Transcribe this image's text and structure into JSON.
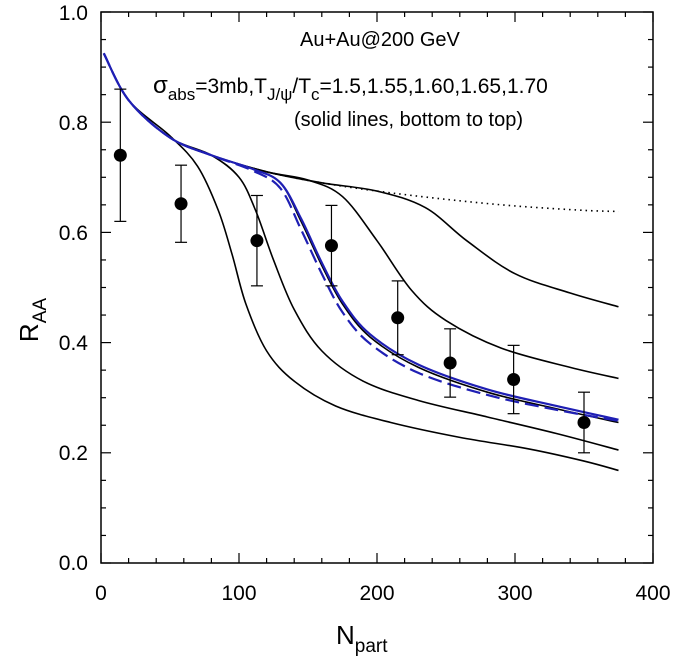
{
  "chart_data": {
    "type": "line",
    "title": "",
    "xlabel": {
      "main": "N",
      "sub": "part"
    },
    "ylabel": {
      "main": "R",
      "sub": "AA"
    },
    "xlim": [
      0,
      400
    ],
    "ylim": [
      0.0,
      1.0
    ],
    "xticks": [
      "0",
      "100",
      "200",
      "300",
      "400"
    ],
    "yticks": [
      "0.0",
      "0.2",
      "0.4",
      "0.6",
      "0.8",
      "1.0"
    ],
    "annotations": {
      "line1": "Au+Au@200 GeV",
      "line2": {
        "sigma": "σ",
        "abs": "abs",
        "mid": "=3mb,T",
        "jpsi": "J/ψ",
        "slash": "/T",
        "c": "c",
        "values": "=1.5,1.55,1.60,1.65,1.70"
      },
      "line3": "(solid lines, bottom to top)"
    },
    "series": [
      {
        "name": "T/Tc=1.5",
        "style": "solid",
        "color": "#000000",
        "x": [
          2,
          20,
          50,
          70,
          85,
          95,
          105,
          120,
          140,
          170,
          210,
          260,
          310,
          350,
          375
        ],
        "y": [
          0.925,
          0.84,
          0.775,
          0.72,
          0.64,
          0.56,
          0.47,
          0.385,
          0.33,
          0.285,
          0.255,
          0.228,
          0.207,
          0.185,
          0.168
        ]
      },
      {
        "name": "T/Tc=1.55",
        "style": "solid",
        "color": "#000000",
        "x": [
          2,
          20,
          50,
          80,
          100,
          112,
          125,
          140,
          160,
          190,
          230,
          280,
          330,
          375
        ],
        "y": [
          0.925,
          0.84,
          0.772,
          0.74,
          0.7,
          0.64,
          0.55,
          0.46,
          0.385,
          0.33,
          0.295,
          0.265,
          0.235,
          0.205
        ]
      },
      {
        "name": "T/Tc=1.60",
        "style": "solid",
        "color": "#000000",
        "x": [
          2,
          20,
          50,
          80,
          110,
          130,
          145,
          160,
          175,
          195,
          230,
          280,
          330,
          375
        ],
        "y": [
          0.925,
          0.84,
          0.772,
          0.74,
          0.715,
          0.69,
          0.62,
          0.54,
          0.47,
          0.41,
          0.355,
          0.31,
          0.28,
          0.255
        ]
      },
      {
        "name": "T/Tc=1.65",
        "style": "solid",
        "color": "#000000",
        "x": [
          2,
          20,
          50,
          80,
          120,
          150,
          175,
          200,
          225,
          250,
          290,
          340,
          375
        ],
        "y": [
          0.925,
          0.84,
          0.772,
          0.74,
          0.71,
          0.695,
          0.665,
          0.585,
          0.495,
          0.44,
          0.39,
          0.355,
          0.335
        ]
      },
      {
        "name": "T/Tc=1.70",
        "style": "solid",
        "color": "#000000",
        "x": [
          2,
          20,
          50,
          80,
          120,
          160,
          200,
          235,
          265,
          300,
          340,
          375
        ],
        "y": [
          0.925,
          0.84,
          0.772,
          0.74,
          0.71,
          0.69,
          0.675,
          0.645,
          0.585,
          0.525,
          0.49,
          0.465
        ]
      },
      {
        "name": "no suppression",
        "style": "dotted",
        "color": "#000000",
        "x": [
          2,
          20,
          50,
          80,
          120,
          160,
          200,
          250,
          300,
          350,
          375
        ],
        "y": [
          0.925,
          0.84,
          0.772,
          0.74,
          0.71,
          0.69,
          0.675,
          0.66,
          0.648,
          0.64,
          0.638
        ]
      },
      {
        "name": "blue solid",
        "style": "solid",
        "color": "#1f1fb4",
        "x": [
          2,
          20,
          50,
          80,
          110,
          130,
          145,
          160,
          175,
          195,
          230,
          280,
          330,
          375
        ],
        "y": [
          0.925,
          0.84,
          0.772,
          0.74,
          0.715,
          0.69,
          0.625,
          0.545,
          0.475,
          0.415,
          0.36,
          0.315,
          0.285,
          0.26
        ]
      },
      {
        "name": "blue dashed",
        "style": "dashed",
        "color": "#1f1fb4",
        "x": [
          2,
          20,
          50,
          80,
          110,
          130,
          145,
          160,
          175,
          195,
          230,
          280,
          330,
          375
        ],
        "y": [
          0.925,
          0.84,
          0.772,
          0.74,
          0.712,
          0.68,
          0.605,
          0.525,
          0.455,
          0.398,
          0.345,
          0.305,
          0.278,
          0.258
        ]
      }
    ],
    "data_points": [
      {
        "x": 14,
        "y": 0.74,
        "err": 0.12
      },
      {
        "x": 58,
        "y": 0.652,
        "err": 0.07
      },
      {
        "x": 113,
        "y": 0.585,
        "err": 0.082
      },
      {
        "x": 167,
        "y": 0.576,
        "err": 0.073
      },
      {
        "x": 215,
        "y": 0.445,
        "err": 0.067
      },
      {
        "x": 253,
        "y": 0.363,
        "err": 0.062
      },
      {
        "x": 299,
        "y": 0.333,
        "err": 0.062
      },
      {
        "x": 350,
        "y": 0.255,
        "err": 0.055
      }
    ]
  }
}
